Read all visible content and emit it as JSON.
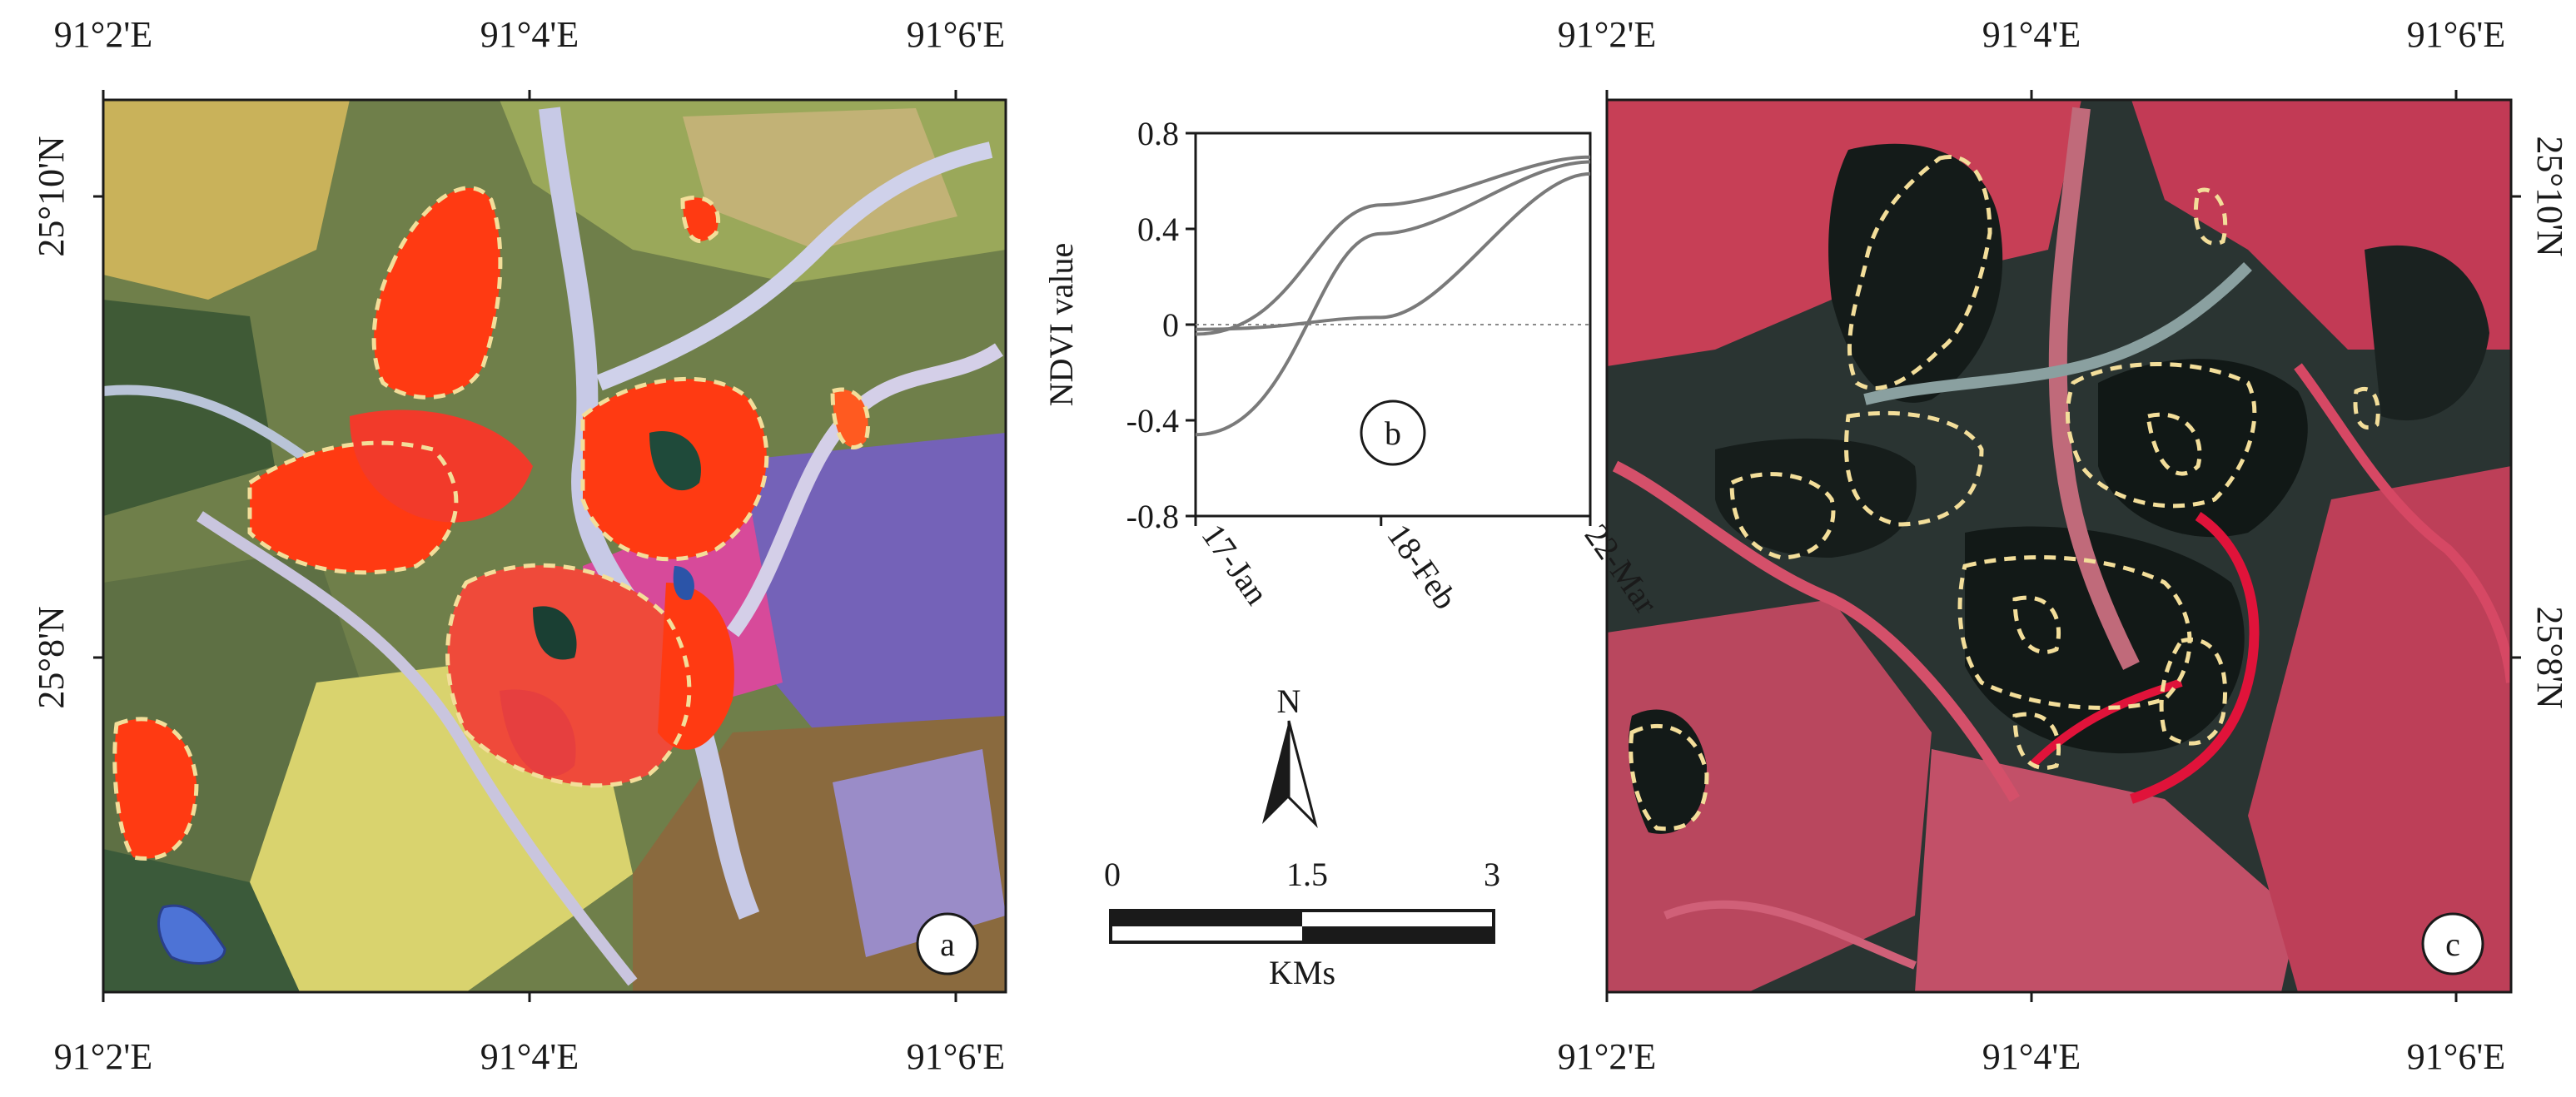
{
  "panels": {
    "a": {
      "letter": "a"
    },
    "b": {
      "letter": "b"
    },
    "c": {
      "letter": "c"
    }
  },
  "coordinates": {
    "longitudes": [
      "91°2'E",
      "91°4'E",
      "91°6'E"
    ],
    "latitudes": [
      "25°10'N",
      "25°8'N"
    ]
  },
  "chart_data": {
    "type": "line",
    "ylabel": "NDVI value",
    "xlabel": "",
    "x": [
      "17-Jan",
      "18-Feb",
      "22-Mar"
    ],
    "yticks": [
      "0.8",
      "0.4",
      "0",
      "-0.4",
      "-0.8"
    ],
    "ylim": [
      -0.8,
      0.8
    ],
    "grid": false,
    "reference_line": 0,
    "series": [
      {
        "values": [
          -0.04,
          0.5,
          0.7
        ]
      },
      {
        "values": [
          -0.46,
          0.38,
          0.68
        ]
      },
      {
        "values": [
          -0.02,
          0.03,
          0.63
        ]
      }
    ]
  },
  "north_arrow": {
    "label": "N"
  },
  "scale_bar": {
    "ticks": [
      "0",
      "1.5",
      "3"
    ],
    "unit": "KMs"
  },
  "colors": {
    "panel_a_bg": "#6f7f4a",
    "panel_c_bg": "#1d2622",
    "red_patch": "#ff3a12",
    "field_boundary": "#f3de9a",
    "vegetation_red": "#c73f56",
    "line": "#7a7a7a"
  }
}
